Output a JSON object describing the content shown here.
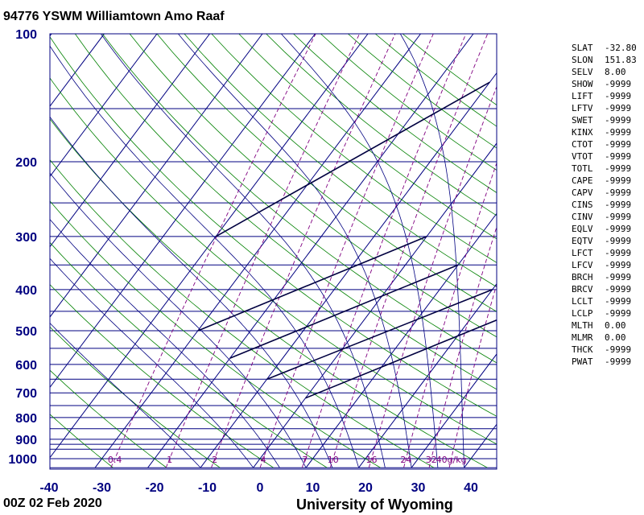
{
  "header": {
    "title": "94776 YSWM Williamtown Amo Raaf"
  },
  "footer": {
    "time": "00Z 02 Feb 2020",
    "source": "University of Wyoming"
  },
  "chart_data": {
    "type": "skew-t",
    "pressure_labels": [
      "100",
      "200",
      "300",
      "400",
      "500",
      "600",
      "700",
      "800",
      "900",
      "1000"
    ],
    "pressure_levels": [
      100,
      150,
      200,
      250,
      300,
      350,
      400,
      450,
      500,
      550,
      600,
      650,
      700,
      750,
      800,
      850,
      900,
      925,
      950,
      1000,
      1050
    ],
    "temperature_labels": [
      "-40",
      "-30",
      "-20",
      "-10",
      "0",
      "10",
      "20",
      "30",
      "40"
    ],
    "temperature_ticks": [
      -40,
      -30,
      -20,
      -10,
      0,
      10,
      20,
      30,
      40
    ],
    "mixing_ratio_labels": [
      "0.4",
      "1",
      "2",
      "4",
      "7",
      "10",
      "16",
      "24",
      "32",
      "40g/kg"
    ],
    "mixing_ratio_values": [
      0.4,
      1,
      2,
      4,
      7,
      10,
      16,
      24,
      32,
      40
    ],
    "axis_range": {
      "temperature": [
        -40,
        45
      ],
      "pressure": [
        1050,
        100
      ]
    },
    "colors": {
      "frame": "#000080",
      "dry_adiabat": "#008000",
      "moist_adiabat": "#000080",
      "mixing_ratio": "#800080",
      "axis_labels": "#000080",
      "thick": "#000040"
    }
  },
  "indices": [
    {
      "key": "SLAT",
      "value": "-32.80"
    },
    {
      "key": "SLON",
      "value": "151.83"
    },
    {
      "key": "SELV",
      "value": "8.00"
    },
    {
      "key": "SHOW",
      "value": "-9999"
    },
    {
      "key": "LIFT",
      "value": "-9999"
    },
    {
      "key": "LFTV",
      "value": "-9999"
    },
    {
      "key": "SWET",
      "value": "-9999"
    },
    {
      "key": "KINX",
      "value": "-9999"
    },
    {
      "key": "CTOT",
      "value": "-9999"
    },
    {
      "key": "VTOT",
      "value": "-9999"
    },
    {
      "key": "TOTL",
      "value": "-9999"
    },
    {
      "key": "CAPE",
      "value": "-9999"
    },
    {
      "key": "CAPV",
      "value": "-9999"
    },
    {
      "key": "CINS",
      "value": "-9999"
    },
    {
      "key": "CINV",
      "value": "-9999"
    },
    {
      "key": "EQLV",
      "value": "-9999"
    },
    {
      "key": "EQTV",
      "value": "-9999"
    },
    {
      "key": "LFCT",
      "value": "-9999"
    },
    {
      "key": "LFCV",
      "value": "-9999"
    },
    {
      "key": "BRCH",
      "value": "-9999"
    },
    {
      "key": "BRCV",
      "value": "-9999"
    },
    {
      "key": "LCLT",
      "value": "-9999"
    },
    {
      "key": "LCLP",
      "value": "-9999"
    },
    {
      "key": "MLTH",
      "value": "0.00"
    },
    {
      "key": "MLMR",
      "value": "0.00"
    },
    {
      "key": "THCK",
      "value": "-9999"
    },
    {
      "key": "PWAT",
      "value": "-9999"
    }
  ]
}
